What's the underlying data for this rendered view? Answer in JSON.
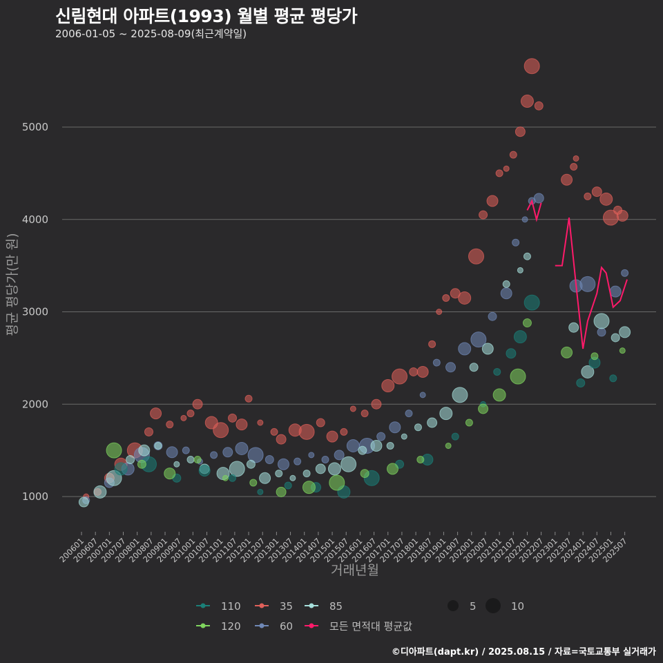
{
  "title": "신림현대 아파트(1993) 월별 평균 평당가",
  "subtitle": "2006-01-05 ~ 2025-08-09(최근계약일)",
  "credit": "©디아파트(dapt.kr) / 2025.08.15 / 자료=국토교통부 실거래가",
  "chart_data": {
    "type": "scatter",
    "xlabel": "거래년월",
    "ylabel": "평균 평당가(만 원)",
    "x_range": [
      "2006-01",
      "2025-08"
    ],
    "ylim": [
      750,
      5700
    ],
    "y_ticks": [
      1000,
      2000,
      3000,
      4000,
      5000
    ],
    "x_ticks": [
      "200601",
      "200607",
      "200701",
      "200707",
      "200801",
      "200807",
      "200901",
      "200907",
      "201001",
      "201007",
      "201101",
      "201107",
      "201201",
      "201207",
      "201301",
      "201307",
      "201401",
      "201407",
      "201501",
      "201507",
      "201601",
      "201607",
      "201701",
      "201707",
      "201801",
      "201807",
      "201901",
      "201907",
      "202001",
      "202007",
      "202101",
      "202107",
      "202201",
      "202207",
      "202301",
      "202307",
      "202401",
      "202407",
      "202501",
      "202507"
    ],
    "grid": "horizontal",
    "legend": {
      "placement": "bottom",
      "colors": [
        {
          "label": "110",
          "color": "#1a7f78"
        },
        {
          "label": "35",
          "color": "#e0605a"
        },
        {
          "label": "85",
          "color": "#a6e0dc"
        },
        {
          "label": "120",
          "color": "#7fd55e"
        },
        {
          "label": "60",
          "color": "#6f88b6"
        },
        {
          "label": "모든 면적대 평균값",
          "color": "#ff1a6a"
        }
      ],
      "sizes": [
        {
          "label": "5",
          "value": 5
        },
        {
          "label": "10",
          "value": 10
        }
      ]
    },
    "series": [
      {
        "name": "35",
        "color": "#e0605a",
        "points": [
          [
            "2006-03",
            1000
          ],
          [
            "2006-08",
            1050
          ],
          [
            "2007-01",
            1200
          ],
          [
            "2007-06",
            1350
          ],
          [
            "2007-12",
            1500
          ],
          [
            "2008-06",
            1700
          ],
          [
            "2008-09",
            1900
          ],
          [
            "2009-03",
            1780
          ],
          [
            "2009-09",
            1850
          ],
          [
            "2009-12",
            1900
          ],
          [
            "2010-03",
            2000
          ],
          [
            "2010-09",
            1800
          ],
          [
            "2011-01",
            1720
          ],
          [
            "2011-06",
            1850
          ],
          [
            "2011-10",
            1780
          ],
          [
            "2012-01",
            2060
          ],
          [
            "2012-06",
            1800
          ],
          [
            "2012-12",
            1700
          ],
          [
            "2013-03",
            1620
          ],
          [
            "2013-09",
            1720
          ],
          [
            "2014-02",
            1700
          ],
          [
            "2014-08",
            1800
          ],
          [
            "2015-01",
            1650
          ],
          [
            "2015-06",
            1700
          ],
          [
            "2015-10",
            1950
          ],
          [
            "2016-03",
            1900
          ],
          [
            "2016-08",
            2000
          ],
          [
            "2017-01",
            2200
          ],
          [
            "2017-06",
            2300
          ],
          [
            "2017-12",
            2350
          ],
          [
            "2018-04",
            2350
          ],
          [
            "2018-08",
            2650
          ],
          [
            "2018-11",
            3000
          ],
          [
            "2019-02",
            3150
          ],
          [
            "2019-06",
            3200
          ],
          [
            "2019-10",
            3150
          ],
          [
            "2020-03",
            3600
          ],
          [
            "2020-06",
            4050
          ],
          [
            "2020-10",
            4200
          ],
          [
            "2021-01",
            4500
          ],
          [
            "2021-04",
            4550
          ],
          [
            "2021-07",
            4700
          ],
          [
            "2021-10",
            4950
          ],
          [
            "2022-01",
            5280
          ],
          [
            "2022-03",
            5660
          ],
          [
            "2022-06",
            5230
          ],
          [
            "2023-06",
            4430
          ],
          [
            "2023-09",
            4570
          ],
          [
            "2023-10",
            4660
          ],
          [
            "2024-03",
            4250
          ],
          [
            "2024-07",
            4300
          ],
          [
            "2024-11",
            4220
          ],
          [
            "2025-01",
            4020
          ],
          [
            "2025-04",
            4100
          ],
          [
            "2025-06",
            4040
          ]
        ]
      },
      {
        "name": "60",
        "color": "#6f88b6",
        "points": [
          [
            "2006-03",
            960
          ],
          [
            "2007-01",
            1150
          ],
          [
            "2007-09",
            1300
          ],
          [
            "2008-03",
            1450
          ],
          [
            "2008-10",
            1550
          ],
          [
            "2009-04",
            1480
          ],
          [
            "2009-10",
            1500
          ],
          [
            "2010-04",
            1380
          ],
          [
            "2010-10",
            1450
          ],
          [
            "2011-04",
            1480
          ],
          [
            "2011-10",
            1520
          ],
          [
            "2012-04",
            1450
          ],
          [
            "2012-10",
            1400
          ],
          [
            "2013-04",
            1350
          ],
          [
            "2013-10",
            1380
          ],
          [
            "2014-04",
            1450
          ],
          [
            "2014-10",
            1400
          ],
          [
            "2015-04",
            1450
          ],
          [
            "2015-10",
            1550
          ],
          [
            "2016-04",
            1550
          ],
          [
            "2016-10",
            1650
          ],
          [
            "2017-04",
            1750
          ],
          [
            "2017-10",
            1900
          ],
          [
            "2018-04",
            2100
          ],
          [
            "2018-10",
            2450
          ],
          [
            "2019-04",
            2400
          ],
          [
            "2019-10",
            2600
          ],
          [
            "2020-04",
            2700
          ],
          [
            "2020-10",
            2950
          ],
          [
            "2021-04",
            3200
          ],
          [
            "2021-08",
            3750
          ],
          [
            "2021-12",
            4000
          ],
          [
            "2022-03",
            4200
          ],
          [
            "2022-06",
            4230
          ],
          [
            "2023-10",
            3280
          ],
          [
            "2024-03",
            3300
          ],
          [
            "2024-09",
            2780
          ],
          [
            "2025-03",
            3220
          ],
          [
            "2025-07",
            3420
          ]
        ]
      },
      {
        "name": "85",
        "color": "#a6e0dc",
        "points": [
          [
            "2006-02",
            940
          ],
          [
            "2006-09",
            1050
          ],
          [
            "2007-03",
            1200
          ],
          [
            "2007-10",
            1400
          ],
          [
            "2008-04",
            1500
          ],
          [
            "2008-10",
            1550
          ],
          [
            "2009-06",
            1350
          ],
          [
            "2009-12",
            1400
          ],
          [
            "2010-06",
            1300
          ],
          [
            "2011-02",
            1250
          ],
          [
            "2011-08",
            1300
          ],
          [
            "2012-02",
            1350
          ],
          [
            "2012-08",
            1200
          ],
          [
            "2013-02",
            1250
          ],
          [
            "2013-08",
            1200
          ],
          [
            "2014-02",
            1250
          ],
          [
            "2014-08",
            1300
          ],
          [
            "2015-02",
            1300
          ],
          [
            "2015-08",
            1350
          ],
          [
            "2016-02",
            1500
          ],
          [
            "2016-08",
            1550
          ],
          [
            "2017-02",
            1550
          ],
          [
            "2017-08",
            1650
          ],
          [
            "2018-02",
            1750
          ],
          [
            "2018-08",
            1800
          ],
          [
            "2019-02",
            1900
          ],
          [
            "2019-08",
            2100
          ],
          [
            "2020-02",
            2400
          ],
          [
            "2020-08",
            2600
          ],
          [
            "2021-04",
            3300
          ],
          [
            "2021-10",
            3450
          ],
          [
            "2022-01",
            3600
          ],
          [
            "2023-09",
            2830
          ],
          [
            "2024-03",
            2350
          ],
          [
            "2024-09",
            2900
          ],
          [
            "2025-03",
            2720
          ],
          [
            "2025-07",
            2780
          ]
        ]
      },
      {
        "name": "110",
        "color": "#1a7f78",
        "points": [
          [
            "2007-06",
            1300
          ],
          [
            "2008-06",
            1350
          ],
          [
            "2009-06",
            1200
          ],
          [
            "2010-06",
            1280
          ],
          [
            "2011-06",
            1200
          ],
          [
            "2012-06",
            1050
          ],
          [
            "2013-06",
            1120
          ],
          [
            "2014-06",
            1100
          ],
          [
            "2015-06",
            1050
          ],
          [
            "2016-06",
            1200
          ],
          [
            "2017-06",
            1350
          ],
          [
            "2018-06",
            1400
          ],
          [
            "2019-06",
            1650
          ],
          [
            "2020-06",
            2000
          ],
          [
            "2020-12",
            2350
          ],
          [
            "2021-06",
            2550
          ],
          [
            "2021-10",
            2730
          ],
          [
            "2022-03",
            3100
          ],
          [
            "2023-12",
            2230
          ],
          [
            "2024-06",
            2450
          ],
          [
            "2025-02",
            2280
          ]
        ]
      },
      {
        "name": "120",
        "color": "#7fd55e",
        "points": [
          [
            "2007-03",
            1500
          ],
          [
            "2008-03",
            1350
          ],
          [
            "2009-03",
            1250
          ],
          [
            "2010-03",
            1400
          ],
          [
            "2011-03",
            1200
          ],
          [
            "2012-03",
            1150
          ],
          [
            "2013-03",
            1050
          ],
          [
            "2014-03",
            1100
          ],
          [
            "2015-03",
            1150
          ],
          [
            "2016-03",
            1250
          ],
          [
            "2017-03",
            1300
          ],
          [
            "2018-03",
            1400
          ],
          [
            "2019-03",
            1550
          ],
          [
            "2019-12",
            1800
          ],
          [
            "2020-06",
            1950
          ],
          [
            "2021-01",
            2100
          ],
          [
            "2021-09",
            2300
          ],
          [
            "2022-01",
            2880
          ],
          [
            "2023-06",
            2560
          ],
          [
            "2024-06",
            2520
          ],
          [
            "2025-06",
            2580
          ]
        ]
      },
      {
        "name": "모든 면적대 평균값",
        "color": "#ff1a6a",
        "points": [
          [
            "2006-01",
            970
          ],
          [
            "2006-06",
            1000
          ],
          [
            "2007-01",
            1200
          ],
          [
            "2007-07",
            1400
          ],
          [
            "2008-01",
            1550
          ],
          [
            "2008-07",
            1620
          ],
          [
            "2009-01",
            1650
          ],
          [
            "2009-07",
            1580
          ],
          [
            "2010-01",
            1630
          ],
          [
            "2010-07",
            1400
          ],
          [
            "2011-01",
            1500
          ],
          [
            "2011-07",
            1500
          ],
          [
            "2012-01",
            1450
          ],
          [
            "2012-07",
            1380
          ],
          [
            "2013-01",
            1350
          ],
          [
            "2013-07",
            1300
          ],
          [
            "2014-01",
            1320
          ],
          [
            "2014-07",
            1400
          ],
          [
            "2015-01",
            1350
          ],
          [
            "2015-07",
            1420
          ],
          [
            "2016-01",
            1550
          ],
          [
            "2016-07",
            1600
          ],
          [
            "2017-01",
            1650
          ],
          [
            "2017-07",
            1800
          ],
          [
            "2018-01",
            1850
          ],
          [
            "2018-07",
            2050
          ],
          [
            "2019-01",
            2400
          ],
          [
            "2019-07",
            2450
          ],
          [
            "2020-01",
            2500
          ],
          [
            "2020-07",
            2850
          ],
          [
            "2021-01",
            3200
          ],
          [
            "2021-07",
            3600
          ],
          [
            "2022-01",
            4100
          ],
          [
            "2022-03",
            4200
          ],
          [
            "2022-05",
            4000
          ],
          [
            "2022-07",
            4180
          ],
          [
            "2023-01",
            3500
          ],
          [
            "2023-04",
            3500
          ],
          [
            "2023-07",
            4020
          ],
          [
            "2023-10",
            3300
          ],
          [
            "2024-01",
            2600
          ],
          [
            "2024-03",
            2900
          ],
          [
            "2024-07",
            3200
          ],
          [
            "2024-09",
            3480
          ],
          [
            "2024-11",
            3420
          ],
          [
            "2025-02",
            3050
          ],
          [
            "2025-05",
            3120
          ],
          [
            "2025-08",
            3350
          ]
        ]
      }
    ]
  }
}
